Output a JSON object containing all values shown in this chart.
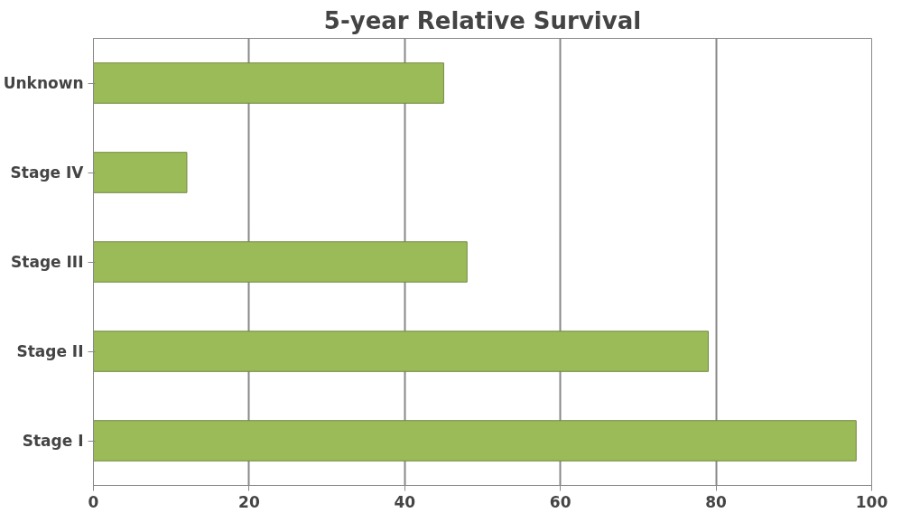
{
  "chart_data": {
    "type": "bar",
    "orientation": "horizontal",
    "title": "5-year Relative Survival",
    "categories": [
      "Unknown",
      "Stage IV",
      "Stage III",
      "Stage II",
      "Stage I"
    ],
    "values": [
      45,
      12,
      48,
      79,
      98
    ],
    "color": "#9bbb59",
    "xlim": [
      0,
      100
    ],
    "xticks": [
      0,
      20,
      40,
      60,
      80,
      100
    ],
    "grid": "x"
  }
}
